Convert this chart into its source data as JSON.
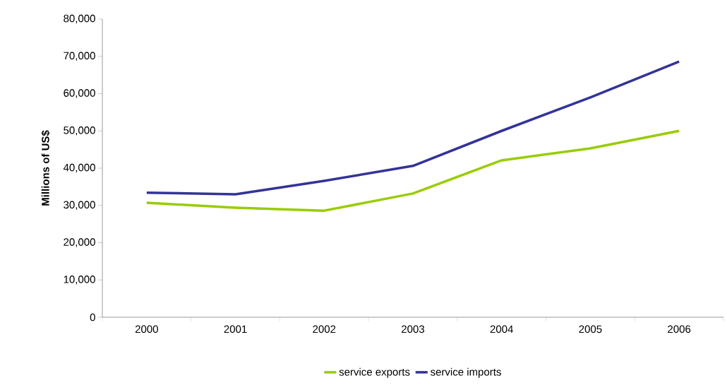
{
  "chart_data": {
    "type": "line",
    "ylabel": "Millions of US$",
    "categories": [
      "2000",
      "2001",
      "2002",
      "2003",
      "2004",
      "2005",
      "2006"
    ],
    "series": [
      {
        "name": "service exports",
        "color": "#99cc00",
        "values": [
          30700,
          29400,
          28600,
          33200,
          42100,
          45300,
          50000
        ]
      },
      {
        "name": "service imports",
        "color": "#333399",
        "values": [
          33400,
          33000,
          36600,
          40600,
          50000,
          59000,
          68600
        ]
      }
    ],
    "ylim": [
      0,
      80000
    ],
    "yticks": [
      0,
      {
        "value": 10000,
        "label": "10,000"
      },
      {
        "value": 20000,
        "label": "20,000"
      },
      {
        "value": 30000,
        "label": "30,000"
      },
      {
        "value": 40000,
        "label": "40,000"
      },
      {
        "value": 50000,
        "label": "50,000"
      },
      {
        "value": 60000,
        "label": "60,000"
      },
      {
        "value": 70000,
        "label": "70,000"
      },
      {
        "value": 80000,
        "label": "80,000"
      }
    ],
    "grid": false,
    "legend": "bottom",
    "marker": "none",
    "line_style": "solid"
  }
}
